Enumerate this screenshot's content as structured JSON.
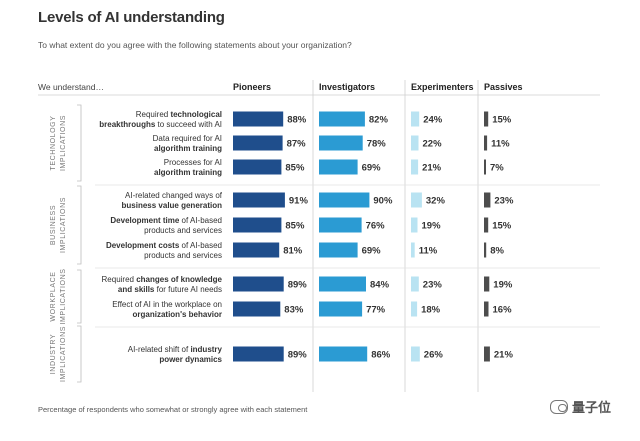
{
  "chart_data": {
    "type": "bar",
    "title": "Levels of AI understanding",
    "subtitle": "To what extent do you agree with the following statements about your organization?",
    "row_header": "We understand…",
    "footnote": "Percentage of respondents who somewhat or strongly agree with each statement",
    "value_suffix": "%",
    "xlim": [
      0,
      100
    ],
    "groups": [
      {
        "lines": [
          "TECHNOLOGY",
          "IMPLICATIONS"
        ],
        "rows": [
          0,
          1,
          2
        ]
      },
      {
        "lines": [
          "BUSINESS",
          "IMPLICATIONS"
        ],
        "rows": [
          3,
          4,
          5
        ]
      },
      {
        "lines": [
          "WORKPLACE",
          "IMPLICATIONS"
        ],
        "rows": [
          6,
          7
        ]
      },
      {
        "lines": [
          "INDUSTRY",
          "IMPLICATIONS"
        ],
        "rows": [
          8
        ]
      }
    ],
    "categories": [
      [
        [
          {
            "t": "Required ",
            "b": false
          },
          {
            "t": "technological",
            "b": true
          }
        ],
        [
          {
            "t": "breakthroughs",
            "b": true
          },
          {
            "t": " to succeed with AI",
            "b": false
          }
        ]
      ],
      [
        [
          {
            "t": "Data required for AI",
            "b": false
          }
        ],
        [
          {
            "t": "algorithm training",
            "b": true
          }
        ]
      ],
      [
        [
          {
            "t": "Processes for AI",
            "b": false
          }
        ],
        [
          {
            "t": "algorithm training",
            "b": true
          }
        ]
      ],
      [
        [
          {
            "t": "AI-related changed ways of",
            "b": false
          }
        ],
        [
          {
            "t": "business value generation",
            "b": true
          }
        ]
      ],
      [
        [
          {
            "t": "Development time",
            "b": true
          },
          {
            "t": " of AI-based",
            "b": false
          }
        ],
        [
          {
            "t": "products and services",
            "b": false
          }
        ]
      ],
      [
        [
          {
            "t": "Development costs",
            "b": true
          },
          {
            "t": " of AI-based",
            "b": false
          }
        ],
        [
          {
            "t": "products and services",
            "b": false
          }
        ]
      ],
      [
        [
          {
            "t": "Required ",
            "b": false
          },
          {
            "t": "changes of knowledge",
            "b": true
          }
        ],
        [
          {
            "t": "and skills",
            "b": true
          },
          {
            "t": " for future AI needs",
            "b": false
          }
        ]
      ],
      [
        [
          {
            "t": "Effect of AI in the workplace on",
            "b": false
          }
        ],
        [
          {
            "t": "organization's behavior",
            "b": true
          }
        ]
      ],
      [
        [
          {
            "t": "AI-related shift of ",
            "b": false
          },
          {
            "t": "industry",
            "b": true
          }
        ],
        [
          {
            "t": "power dynamics",
            "b": true
          }
        ]
      ]
    ],
    "series": [
      {
        "name": "Pioneers",
        "color": "#1f4e8c",
        "values": [
          88,
          87,
          85,
          91,
          85,
          81,
          89,
          83,
          89
        ]
      },
      {
        "name": "Investigators",
        "color": "#2b9bd3",
        "values": [
          82,
          78,
          69,
          90,
          76,
          69,
          84,
          77,
          86
        ]
      },
      {
        "name": "Experimenters",
        "color": "#b9e3f2",
        "values": [
          24,
          22,
          21,
          32,
          19,
          11,
          23,
          18,
          26
        ]
      },
      {
        "name": "Passives",
        "color": "#4d4d4d",
        "values": [
          15,
          11,
          7,
          23,
          15,
          8,
          19,
          16,
          21
        ]
      }
    ]
  },
  "watermark": {
    "text": "量子位",
    "icon": "wechat-icon"
  }
}
